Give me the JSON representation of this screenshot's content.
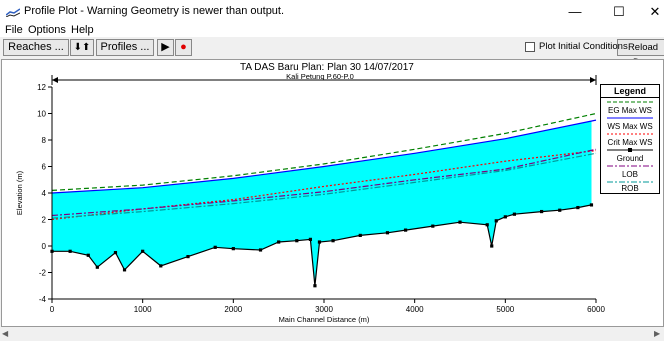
{
  "window": {
    "title": "Profile Plot - Warning Geometry is newer than output.",
    "minimize": "—",
    "maximize": "☐",
    "close": "✕"
  },
  "menu": [
    "File",
    "Options",
    "Help"
  ],
  "toolbar": {
    "reaches_label": "Reaches ...",
    "updown_label": "⬇⬆",
    "profiles_label": "Profiles ...",
    "play_label": "▶",
    "record_label": "●",
    "plot_initial_label": "Plot Initial Conditions",
    "reload_label": "Reload Data"
  },
  "colors": {
    "water": "#00ffff",
    "eg": "#008000",
    "ws": "#0000ff",
    "crit": "#ff0000",
    "ground": "#000000",
    "lob": "#800080",
    "rob": "#009999"
  },
  "chart_data": {
    "type": "area",
    "title": "TA DAS Baru      Plan: Plan 30      14/07/2017",
    "reach_label": "Kali Petung P.60-P.0",
    "xlabel": "Main Channel Distance (m)",
    "ylabel": "Elevation (m)",
    "xlim": [
      0,
      6000
    ],
    "ylim": [
      -4,
      12
    ],
    "xticks": [
      "0",
      "1000",
      "2000",
      "3000",
      "4000",
      "5000",
      "6000"
    ],
    "yticks": [
      "-4",
      "-2",
      "0",
      "2",
      "4",
      "6",
      "8",
      "10",
      "12"
    ],
    "grid": false,
    "legend_position": "right",
    "legend": [
      "EG  Max WS",
      "WS  Max WS",
      "Crit  Max WS",
      "Ground",
      "LOB",
      "ROB"
    ],
    "series": [
      {
        "name": "EG  Max WS",
        "x": [
          0,
          1000,
          2000,
          3000,
          4000,
          5000,
          6000
        ],
        "y": [
          4.2,
          4.6,
          5.3,
          6.2,
          7.3,
          8.5,
          10.0
        ]
      },
      {
        "name": "WS  Max WS",
        "x": [
          0,
          1000,
          2000,
          3000,
          4000,
          5000,
          6000
        ],
        "y": [
          4.0,
          4.4,
          5.1,
          6.0,
          7.0,
          8.1,
          9.5
        ]
      },
      {
        "name": "Crit  Max WS",
        "x": [
          0,
          1000,
          2000,
          3000,
          4000,
          5000,
          6000
        ],
        "y": [
          2.0,
          2.8,
          3.5,
          4.5,
          5.4,
          6.4,
          7.2
        ]
      },
      {
        "name": "Ground",
        "x": [
          0,
          200,
          400,
          500,
          700,
          800,
          1000,
          1200,
          1500,
          1800,
          2000,
          2300,
          2500,
          2700,
          2850,
          2900,
          2950,
          3100,
          3400,
          3700,
          3900,
          4200,
          4500,
          4800,
          4850,
          4900,
          5000,
          5100,
          5400,
          5600,
          5800,
          5950
        ],
        "y": [
          -0.4,
          -0.4,
          -0.7,
          -1.6,
          -0.5,
          -1.8,
          -0.4,
          -1.5,
          -0.8,
          -0.1,
          -0.2,
          -0.3,
          0.3,
          0.4,
          0.5,
          -3.0,
          0.3,
          0.4,
          0.8,
          1.0,
          1.2,
          1.5,
          1.8,
          1.6,
          0.0,
          1.9,
          2.2,
          2.4,
          2.6,
          2.7,
          2.9,
          3.1
        ]
      },
      {
        "name": "LOB",
        "x": [
          0,
          1000,
          2000,
          3000,
          4000,
          5000,
          6000
        ],
        "y": [
          2.3,
          2.8,
          3.4,
          4.1,
          5.0,
          5.8,
          7.3
        ]
      },
      {
        "name": "ROB",
        "x": [
          0,
          1000,
          2000,
          3000,
          4000,
          5000,
          6000
        ],
        "y": [
          2.1,
          2.6,
          3.2,
          3.9,
          4.8,
          5.7,
          7.0
        ]
      }
    ]
  }
}
